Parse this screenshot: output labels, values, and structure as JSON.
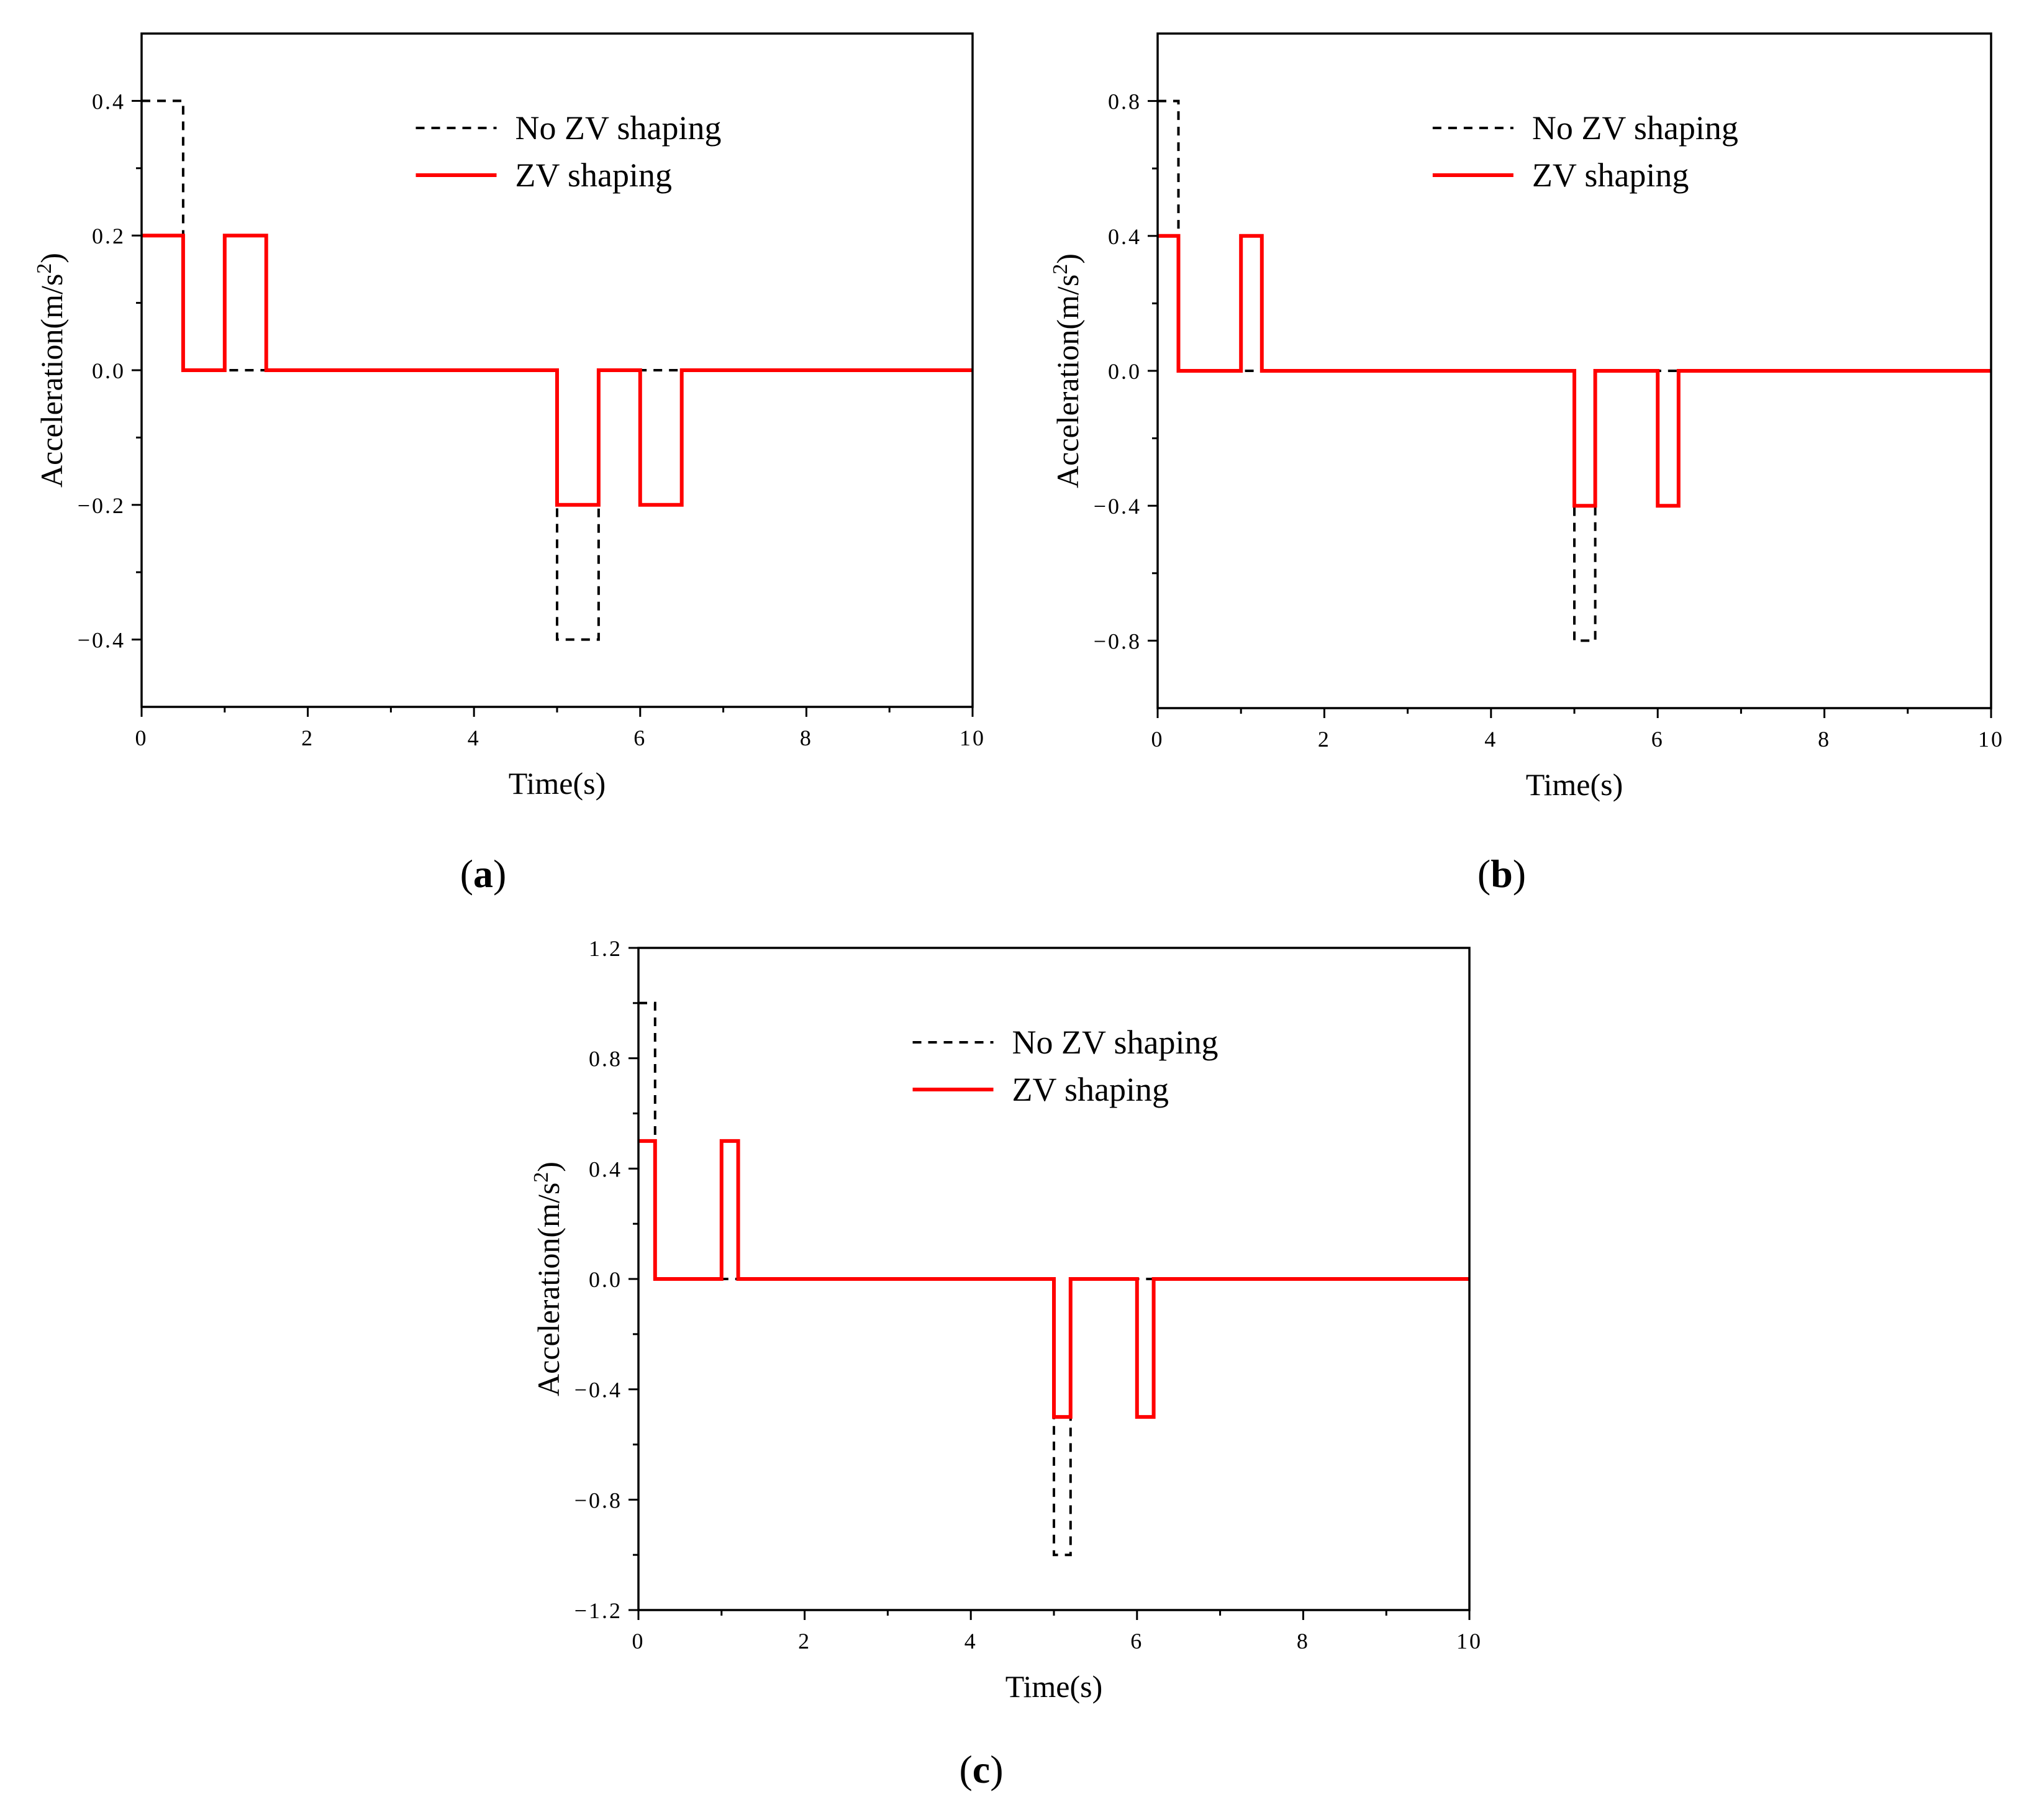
{
  "colors": {
    "no_zv": "#000000",
    "zv": "#ff0000"
  },
  "chart_data": [
    {
      "id": "a",
      "type": "line",
      "panel_label": "a",
      "xlabel": "Time(s)",
      "ylabel_prefix": "Acceleration(m/s",
      "ylabel_sup": "2",
      "ylabel_suffix": ")",
      "xlim": [
        0,
        10
      ],
      "ylim": [
        -0.5,
        0.5
      ],
      "x_ticks": [
        0,
        2,
        4,
        6,
        8,
        10
      ],
      "x_tick_labels": [
        "0",
        "2",
        "4",
        "6",
        "8",
        "10"
      ],
      "x_minor_ticks": [
        1,
        3,
        5,
        7,
        9
      ],
      "y_ticks": [
        -0.4,
        -0.2,
        0.0,
        0.2,
        0.4
      ],
      "y_tick_labels": [
        "−0.4",
        "−0.2",
        "0.0",
        "0.2",
        "0.4"
      ],
      "y_minor_ticks": [
        -0.3,
        -0.1,
        0.1,
        0.3
      ],
      "legend_position": "top-right",
      "series": [
        {
          "name": "No ZV shaping",
          "style": "dashed",
          "x": [
            0,
            0.5,
            0.5,
            5.0,
            5.0,
            5.5,
            5.5,
            10
          ],
          "y": [
            0.4,
            0.4,
            0.0,
            0.0,
            -0.4,
            -0.4,
            0.0,
            0.0
          ]
        },
        {
          "name": "ZV shaping",
          "style": "solid",
          "x": [
            0,
            0.5,
            0.5,
            1.0,
            1.0,
            1.5,
            1.5,
            5.0,
            5.0,
            5.5,
            5.5,
            6.0,
            6.0,
            6.5,
            6.5,
            10
          ],
          "y": [
            0.2,
            0.2,
            0.0,
            0.0,
            0.2,
            0.2,
            0.0,
            0.0,
            -0.2,
            -0.2,
            0.0,
            0.0,
            -0.2,
            -0.2,
            0.0,
            0.0
          ]
        }
      ]
    },
    {
      "id": "b",
      "type": "line",
      "panel_label": "b",
      "xlabel": "Time(s)",
      "ylabel_prefix": "Acceleration(m/s",
      "ylabel_sup": "2",
      "ylabel_suffix": ")",
      "xlim": [
        0,
        10
      ],
      "ylim": [
        -1.0,
        1.0
      ],
      "x_ticks": [
        0,
        2,
        4,
        6,
        8,
        10
      ],
      "x_tick_labels": [
        "0",
        "2",
        "4",
        "6",
        "8",
        "10"
      ],
      "x_minor_ticks": [
        1,
        3,
        5,
        7,
        9
      ],
      "y_ticks": [
        -0.8,
        -0.4,
        0.0,
        0.4,
        0.8
      ],
      "y_tick_labels": [
        "−0.8",
        "−0.4",
        "0.0",
        "0.4",
        "0.8"
      ],
      "y_minor_ticks": [
        -0.6,
        -0.2,
        0.2,
        0.6
      ],
      "legend_position": "top-right",
      "series": [
        {
          "name": "No ZV shaping",
          "style": "dashed",
          "x": [
            0,
            0.25,
            0.25,
            5.0,
            5.0,
            5.25,
            5.25,
            10
          ],
          "y": [
            0.8,
            0.8,
            0.0,
            0.0,
            -0.8,
            -0.8,
            0.0,
            0.0
          ]
        },
        {
          "name": "ZV shaping",
          "style": "solid",
          "x": [
            0,
            0.25,
            0.25,
            1.0,
            1.0,
            1.25,
            1.25,
            5.0,
            5.0,
            5.25,
            5.25,
            6.0,
            6.0,
            6.25,
            6.25,
            10
          ],
          "y": [
            0.4,
            0.4,
            0.0,
            0.0,
            0.4,
            0.4,
            0.0,
            0.0,
            -0.4,
            -0.4,
            0.0,
            0.0,
            -0.4,
            -0.4,
            0.0,
            0.0
          ]
        }
      ]
    },
    {
      "id": "c",
      "type": "line",
      "panel_label": "c",
      "xlabel": "Time(s)",
      "ylabel_prefix": "Acceleration(m/s",
      "ylabel_sup": "2",
      "ylabel_suffix": ")",
      "xlim": [
        0,
        10
      ],
      "ylim": [
        -1.2,
        1.2
      ],
      "x_ticks": [
        0,
        2,
        4,
        6,
        8,
        10
      ],
      "x_tick_labels": [
        "0",
        "2",
        "4",
        "6",
        "8",
        "10"
      ],
      "x_minor_ticks": [
        1,
        3,
        5,
        7,
        9
      ],
      "y_ticks": [
        -1.2,
        -0.8,
        -0.4,
        0.0,
        0.4,
        0.8,
        1.2
      ],
      "y_tick_labels": [
        "−1.2",
        "−0.8",
        "−0.4",
        "0.0",
        "0.4",
        "0.8",
        "1.2"
      ],
      "y_minor_ticks": [
        -1.0,
        -0.6,
        -0.2,
        0.2,
        0.6,
        1.0
      ],
      "legend_position": "top-right",
      "series": [
        {
          "name": "No ZV shaping",
          "style": "dashed",
          "x": [
            0,
            0.2,
            0.2,
            5.0,
            5.0,
            5.2,
            5.2,
            10
          ],
          "y": [
            1.0,
            1.0,
            0.0,
            0.0,
            -1.0,
            -1.0,
            0.0,
            0.0
          ]
        },
        {
          "name": "ZV shaping",
          "style": "solid",
          "x": [
            0,
            0.2,
            0.2,
            1.0,
            1.0,
            1.2,
            1.2,
            5.0,
            5.0,
            5.2,
            5.2,
            6.0,
            6.0,
            6.2,
            6.2,
            10
          ],
          "y": [
            0.5,
            0.5,
            0.0,
            0.0,
            0.5,
            0.5,
            0.0,
            0.0,
            -0.5,
            -0.5,
            0.0,
            0.0,
            -0.5,
            -0.5,
            0.0,
            0.0
          ]
        }
      ]
    }
  ]
}
